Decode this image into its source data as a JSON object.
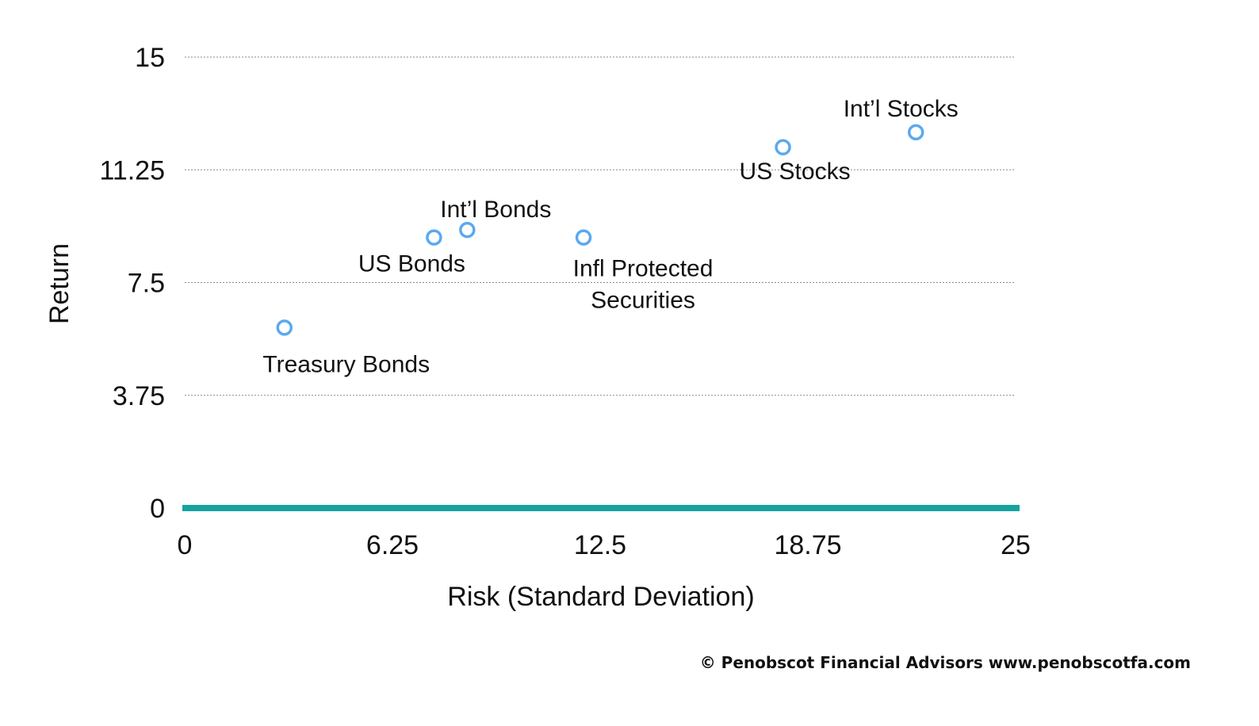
{
  "chart_data": {
    "type": "scatter",
    "title": "",
    "xlabel": "Risk (Standard Deviation)",
    "ylabel": "Return",
    "xlim": [
      0,
      25
    ],
    "ylim": [
      0,
      15
    ],
    "x_ticks": [
      "0",
      "6.25",
      "12.5",
      "18.75",
      "25"
    ],
    "y_ticks": [
      "0",
      "3.75",
      "7.5",
      "11.25",
      "15"
    ],
    "grid": "horizontal dotted",
    "marker_color": "#5aa9f0",
    "baseline_color": "#16a3a0",
    "points": [
      {
        "label_lines": [
          "Treasury Bonds"
        ],
        "x": 3.0,
        "y": 6.0
      },
      {
        "label_lines": [
          "US Bonds"
        ],
        "x": 7.5,
        "y": 9.0
      },
      {
        "label_lines": [
          "Int’l Bonds"
        ],
        "x": 8.5,
        "y": 9.25
      },
      {
        "label_lines": [
          "Infl Protected",
          "Securities"
        ],
        "x": 12.0,
        "y": 9.0
      },
      {
        "label_lines": [
          "US Stocks"
        ],
        "x": 18.0,
        "y": 12.0
      },
      {
        "label_lines": [
          "Int’l Stocks"
        ],
        "x": 22.0,
        "y": 12.5
      }
    ]
  },
  "footer": {
    "copyright": "© Penobscot Financial Advisors www.penobscotfa.com"
  }
}
